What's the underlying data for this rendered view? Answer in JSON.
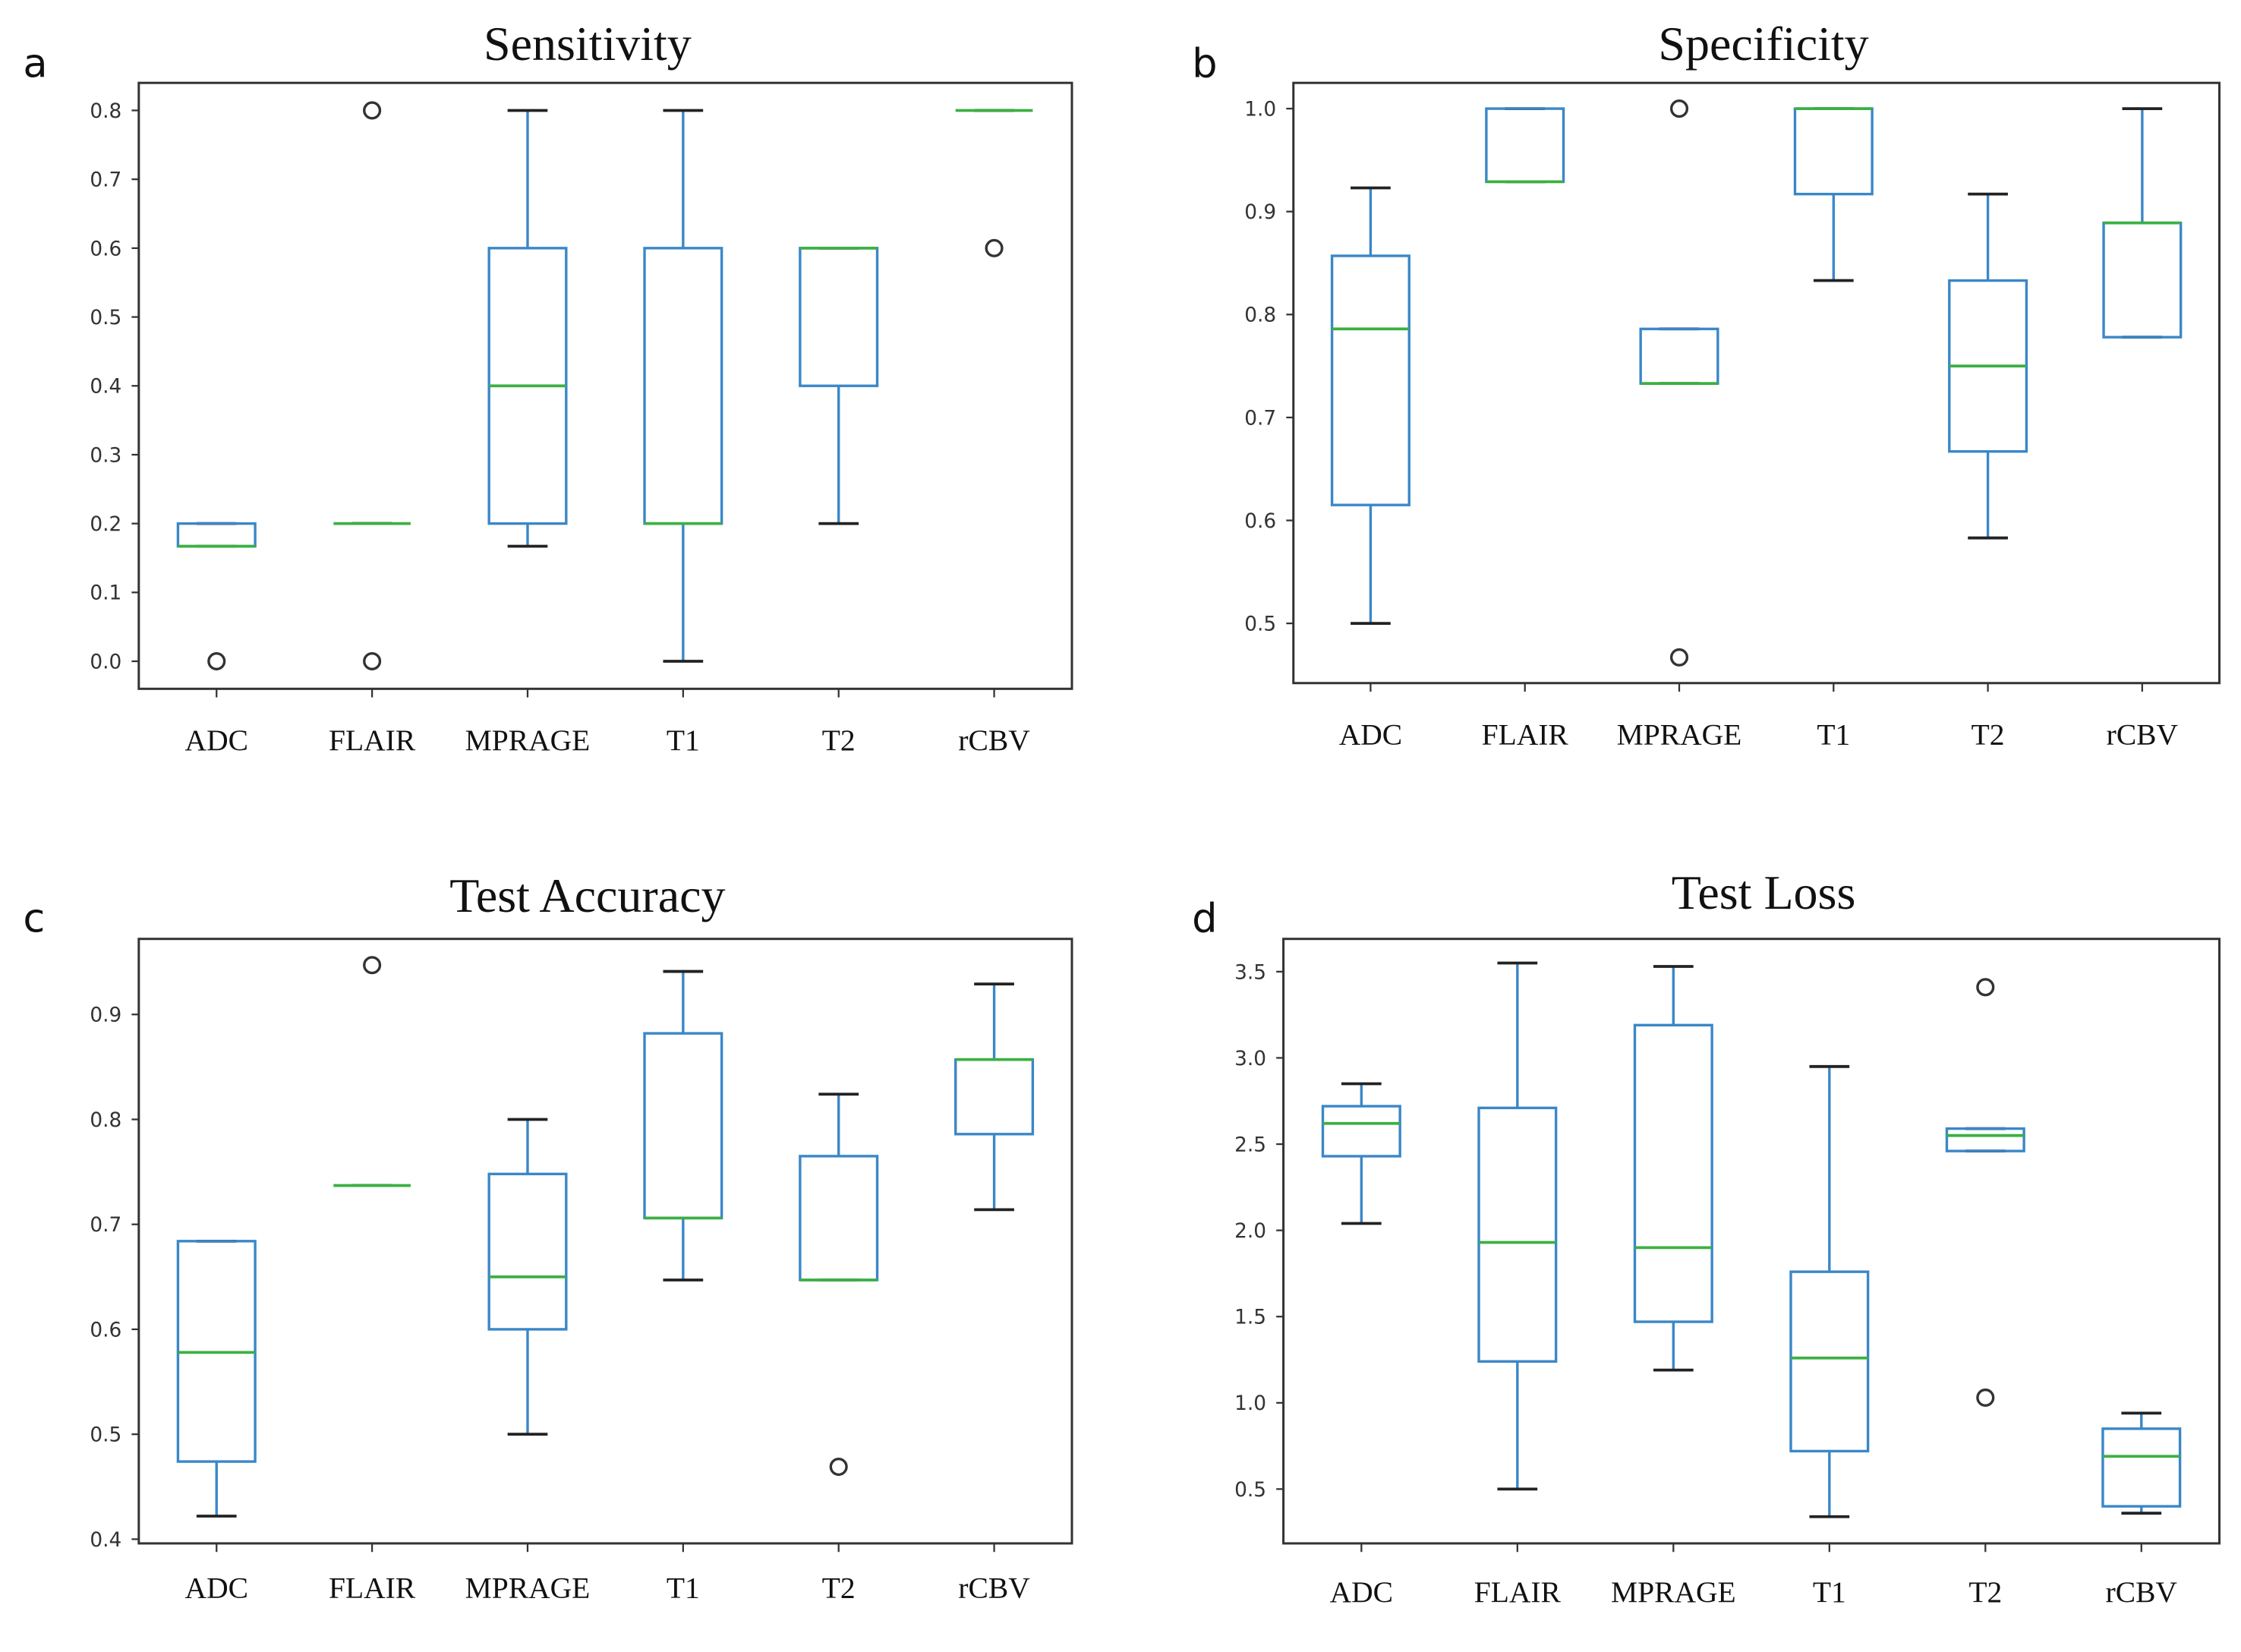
{
  "colors": {
    "box": "#3a87c8",
    "median": "#3cb043",
    "cap": "#222222",
    "frame": "#333333"
  },
  "chart_data": [
    {
      "type": "box",
      "panel": "a",
      "title": "Sensitivity",
      "categories": [
        "ADC",
        "FLAIR",
        "MPRAGE",
        "T1",
        "T2",
        "rCBV"
      ],
      "yticks": [
        "0.0",
        "0.1",
        "0.2",
        "0.3",
        "0.4",
        "0.5",
        "0.6",
        "0.7",
        "0.8"
      ],
      "ylim": [
        -0.04,
        0.84
      ],
      "boxes": [
        {
          "whislo": 0.167,
          "q1": 0.167,
          "med": 0.167,
          "q3": 0.2,
          "whishi": 0.2,
          "fliers": [
            0.0
          ]
        },
        {
          "whislo": 0.2,
          "q1": 0.2,
          "med": 0.2,
          "q3": 0.2,
          "whishi": 0.2,
          "fliers": [
            0.8,
            0.0
          ]
        },
        {
          "whislo": 0.167,
          "q1": 0.2,
          "med": 0.4,
          "q3": 0.6,
          "whishi": 0.8,
          "fliers": []
        },
        {
          "whislo": 0.0,
          "q1": 0.2,
          "med": 0.2,
          "q3": 0.6,
          "whishi": 0.8,
          "fliers": []
        },
        {
          "whislo": 0.2,
          "q1": 0.4,
          "med": 0.6,
          "q3": 0.6,
          "whishi": 0.6,
          "fliers": []
        },
        {
          "whislo": 0.8,
          "q1": 0.8,
          "med": 0.8,
          "q3": 0.8,
          "whishi": 0.8,
          "fliers": [
            0.6
          ]
        }
      ]
    },
    {
      "type": "box",
      "panel": "b",
      "title": "Specificity",
      "categories": [
        "ADC",
        "FLAIR",
        "MPRAGE",
        "T1",
        "T2",
        "rCBV"
      ],
      "yticks": [
        "0.5",
        "0.6",
        "0.7",
        "0.8",
        "0.9",
        "1.0"
      ],
      "ylim": [
        0.442,
        1.025
      ],
      "boxes": [
        {
          "whislo": 0.5,
          "q1": 0.615,
          "med": 0.786,
          "q3": 0.857,
          "whishi": 0.923,
          "fliers": []
        },
        {
          "whislo": 0.929,
          "q1": 0.929,
          "med": 0.929,
          "q3": 1.0,
          "whishi": 1.0,
          "fliers": []
        },
        {
          "whislo": 0.733,
          "q1": 0.733,
          "med": 0.733,
          "q3": 0.786,
          "whishi": 0.786,
          "fliers": [
            1.0,
            0.467
          ]
        },
        {
          "whislo": 0.833,
          "q1": 0.917,
          "med": 1.0,
          "q3": 1.0,
          "whishi": 1.0,
          "fliers": []
        },
        {
          "whislo": 0.583,
          "q1": 0.667,
          "med": 0.75,
          "q3": 0.833,
          "whishi": 0.917,
          "fliers": []
        },
        {
          "whislo": 0.778,
          "q1": 0.778,
          "med": 0.889,
          "q3": 0.889,
          "whishi": 1.0,
          "fliers": []
        }
      ]
    },
    {
      "type": "box",
      "panel": "c",
      "title": "Test Accuracy",
      "categories": [
        "ADC",
        "FLAIR",
        "MPRAGE",
        "T1",
        "T2",
        "rCBV"
      ],
      "yticks": [
        "0.4",
        "0.5",
        "0.6",
        "0.7",
        "0.8",
        "0.9"
      ],
      "ylim": [
        0.396,
        0.972
      ],
      "boxes": [
        {
          "whislo": 0.422,
          "q1": 0.474,
          "med": 0.578,
          "q3": 0.684,
          "whishi": 0.684,
          "fliers": []
        },
        {
          "whislo": 0.737,
          "q1": 0.737,
          "med": 0.737,
          "q3": 0.737,
          "whishi": 0.737,
          "fliers": [
            0.947
          ]
        },
        {
          "whislo": 0.5,
          "q1": 0.6,
          "med": 0.65,
          "q3": 0.748,
          "whishi": 0.8,
          "fliers": []
        },
        {
          "whislo": 0.647,
          "q1": 0.706,
          "med": 0.706,
          "q3": 0.882,
          "whishi": 0.941,
          "fliers": []
        },
        {
          "whislo": 0.647,
          "q1": 0.647,
          "med": 0.647,
          "q3": 0.765,
          "whishi": 0.824,
          "fliers": [
            0.469
          ]
        },
        {
          "whislo": 0.714,
          "q1": 0.786,
          "med": 0.857,
          "q3": 0.857,
          "whishi": 0.929,
          "fliers": []
        }
      ]
    },
    {
      "type": "box",
      "panel": "d",
      "title": "Test Loss",
      "categories": [
        "ADC",
        "FLAIR",
        "MPRAGE",
        "T1",
        "T2",
        "rCBV"
      ],
      "yticks": [
        "0.5",
        "1.0",
        "1.5",
        "2.0",
        "2.5",
        "3.0",
        "3.5"
      ],
      "ylim": [
        0.185,
        3.69
      ],
      "boxes": [
        {
          "whislo": 2.04,
          "q1": 2.43,
          "med": 2.62,
          "q3": 2.72,
          "whishi": 2.85,
          "fliers": []
        },
        {
          "whislo": 0.5,
          "q1": 1.24,
          "med": 1.93,
          "q3": 2.71,
          "whishi": 3.55,
          "fliers": []
        },
        {
          "whislo": 1.19,
          "q1": 1.47,
          "med": 1.9,
          "q3": 3.19,
          "whishi": 3.53,
          "fliers": []
        },
        {
          "whislo": 0.34,
          "q1": 0.72,
          "med": 1.26,
          "q3": 1.76,
          "whishi": 2.95,
          "fliers": []
        },
        {
          "whislo": 2.46,
          "q1": 2.46,
          "med": 2.55,
          "q3": 2.59,
          "whishi": 2.59,
          "fliers": [
            3.41,
            1.03
          ]
        },
        {
          "whislo": 0.36,
          "q1": 0.4,
          "med": 0.69,
          "q3": 0.85,
          "whishi": 0.94,
          "fliers": []
        }
      ]
    }
  ]
}
